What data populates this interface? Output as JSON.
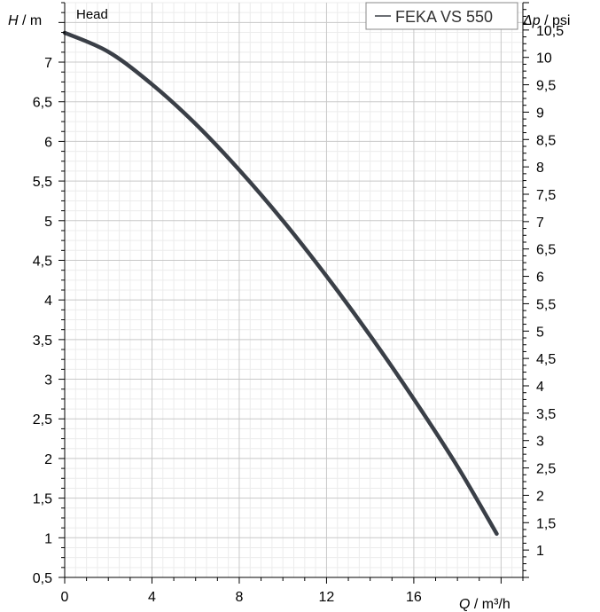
{
  "chart_data": {
    "type": "line",
    "title": "Head",
    "x": [
      0,
      2,
      4,
      6,
      8,
      10,
      12,
      14,
      16,
      18,
      19.8
    ],
    "series": [
      {
        "name": "FEKA VS 550",
        "values": [
          7.37,
          7.13,
          6.72,
          6.22,
          5.64,
          5.0,
          4.3,
          3.55,
          2.75,
          1.9,
          1.05
        ],
        "color": "#3a3f47"
      }
    ],
    "xlabel_var": "Q",
    "xlabel_unit": " / m³/h",
    "ylabel_var": "H",
    "ylabel_unit": " / m",
    "y2label_var": "Δp",
    "y2label_unit": " / psi",
    "xlim": [
      0,
      21
    ],
    "ylim": [
      0.5,
      7.75
    ],
    "y2lim": [
      0.5,
      11.0
    ],
    "xticks": [
      0,
      4,
      8,
      12,
      16
    ],
    "xtick_labels": [
      "0",
      "4",
      "8",
      "12",
      "16"
    ],
    "yticks": [
      0.5,
      1,
      1.5,
      2,
      2.5,
      3,
      3.5,
      4,
      4.5,
      5,
      5.5,
      6,
      6.5,
      7
    ],
    "ytick_labels": [
      "0,5",
      "1",
      "1,5",
      "2",
      "2,5",
      "3",
      "3,5",
      "4",
      "4,5",
      "5",
      "5,5",
      "6",
      "6,5",
      "7"
    ],
    "y2ticks": [
      1,
      1.5,
      2,
      2.5,
      3,
      3.5,
      4,
      4.5,
      5,
      5.5,
      6,
      6.5,
      7,
      7.5,
      8,
      8.5,
      9,
      9.5,
      10,
      10.5
    ],
    "y2tick_labels": [
      "1",
      "1,5",
      "2",
      "2,5",
      "3",
      "3,5",
      "4",
      "4,5",
      "5",
      "5,5",
      "6",
      "6,5",
      "7",
      "7,5",
      "8",
      "8,5",
      "9",
      "9,5",
      "10",
      "10,5"
    ],
    "grid": true,
    "legend_position": "top-right"
  }
}
